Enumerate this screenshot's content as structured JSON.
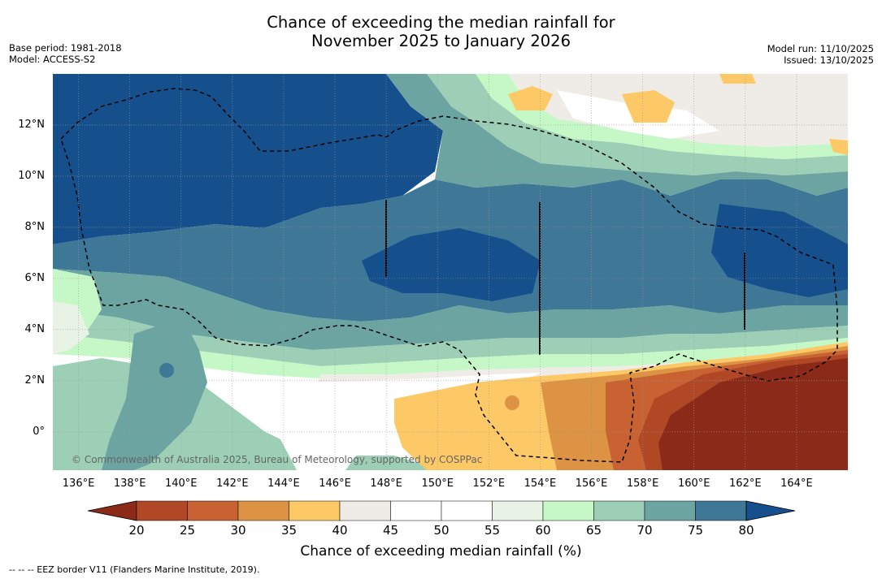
{
  "header": {
    "title_line1": "Chance of exceeding the median rainfall for",
    "title_line2": "November 2025 to January 2026"
  },
  "meta_left": {
    "base_period": "Base period: 1981-2018",
    "model": "Model: ACCESS-S2"
  },
  "meta_right": {
    "model_run": "Model run: 11/10/2025",
    "issued": "Issued: 13/10/2025"
  },
  "map": {
    "lat_labels": [
      "12°N",
      "10°N",
      "8°N",
      "6°N",
      "4°N",
      "2°N",
      "0°"
    ],
    "lon_labels": [
      "136°E",
      "138°E",
      "140°E",
      "142°E",
      "144°E",
      "146°E",
      "148°E",
      "150°E",
      "152°E",
      "154°E",
      "156°E",
      "158°E",
      "160°E",
      "162°E",
      "164°E"
    ],
    "lon_range": [
      135,
      166
    ],
    "lat_range": [
      -1.5,
      14
    ],
    "copyright": "© Commonwealth of Australia 2025, Bureau of Meteorology, supported by COSPPac"
  },
  "colorbar": {
    "ticks": [
      "20",
      "25",
      "30",
      "35",
      "40",
      "45",
      "50",
      "55",
      "60",
      "65",
      "70",
      "75",
      "80"
    ],
    "colors": [
      "#8b2a18",
      "#b04826",
      "#c86232",
      "#dd9344",
      "#fdc866",
      "#efebe6",
      "#ffffff",
      "#ffffff",
      "#e8f3e6",
      "#c6f7c6",
      "#9ccfb5",
      "#6ca4a2",
      "#3f7797",
      "#154f8c"
    ],
    "title": "Chance of exceeding median rainfall (%)"
  },
  "footnote": "--  --  -- EEZ border V11 (Flanders Marine Institute, 2019)."
}
